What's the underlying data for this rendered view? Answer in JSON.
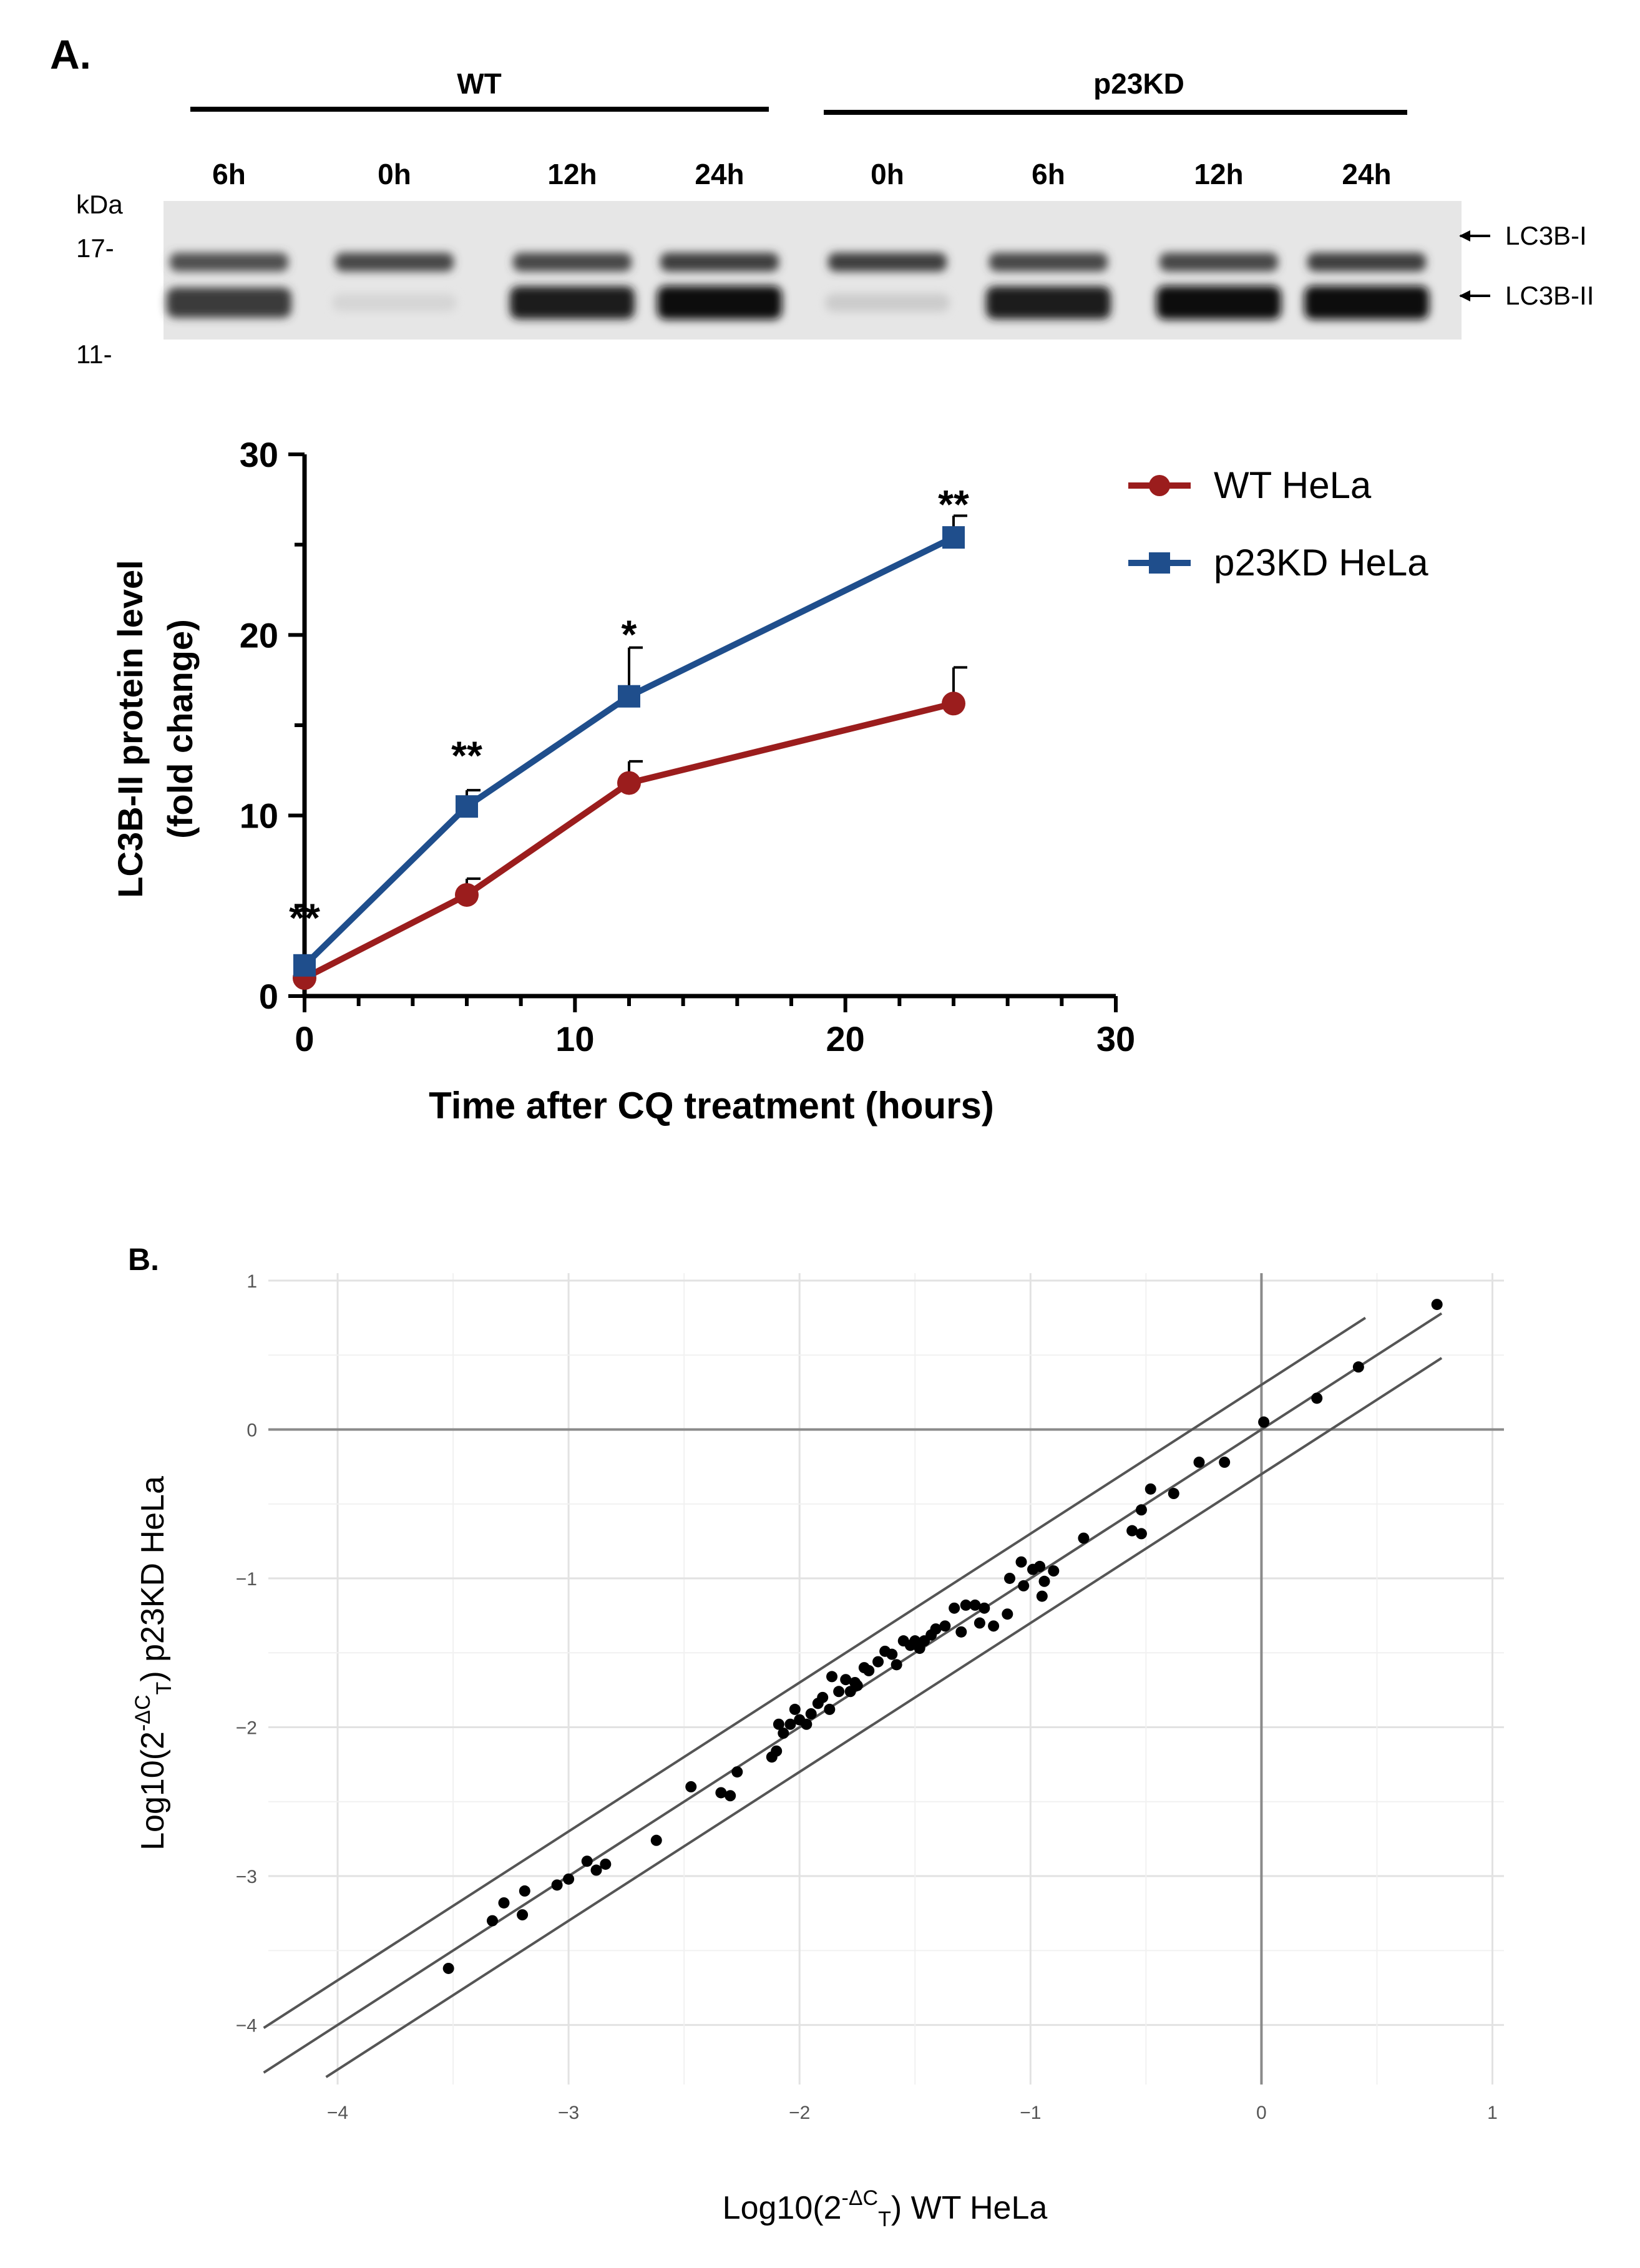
{
  "panel_a": {
    "label": "A.",
    "blot": {
      "group_wt": "WT",
      "group_kd": "p23KD",
      "lanes": [
        "6h",
        "0h",
        "12h",
        "24h",
        "0h",
        "6h",
        "12h",
        "24h"
      ],
      "kda_label": "kDa",
      "marker_17": "17-",
      "marker_11": "11-",
      "band_upper": "LC3B-I",
      "band_lower": "LC3B-II",
      "upper_band_intensity": [
        0.75,
        0.8,
        0.8,
        0.85,
        0.85,
        0.8,
        0.8,
        0.85
      ],
      "lower_band_intensity": [
        0.8,
        0.08,
        0.95,
        1.0,
        0.12,
        0.95,
        1.0,
        1.0
      ]
    }
  },
  "panel_b": {
    "label": "B."
  },
  "chart_data": [
    {
      "type": "line",
      "title": "",
      "xlabel": "Time after CQ treatment (hours)",
      "ylabel_line1": "LC3B-II protein level",
      "ylabel_line2": "(fold change)",
      "xlim": [
        0,
        30
      ],
      "ylim": [
        0,
        30
      ],
      "xticks": [
        0,
        10,
        20,
        30
      ],
      "yticks": [
        0,
        10,
        20,
        30
      ],
      "x": [
        0,
        6,
        12,
        24
      ],
      "series": [
        {
          "name": "WT HeLa",
          "color": "#9b1d1d",
          "marker": "circle",
          "values": [
            1.0,
            5.6,
            11.8,
            16.2
          ],
          "errors": [
            0,
            0.9,
            1.2,
            2.0
          ]
        },
        {
          "name": "p23KD HeLa",
          "color": "#1f4e8c",
          "marker": "square",
          "values": [
            1.7,
            10.5,
            16.6,
            25.4
          ],
          "errors": [
            0,
            0.9,
            2.7,
            1.2
          ]
        }
      ],
      "annotations": [
        {
          "x": 0,
          "y": 4.4,
          "text": "**"
        },
        {
          "x": 6,
          "y": 13.4,
          "text": "**"
        },
        {
          "x": 12,
          "y": 20.1,
          "text": "*"
        },
        {
          "x": 24,
          "y": 27.3,
          "text": "**"
        }
      ],
      "legend_position": "top-right"
    },
    {
      "type": "scatter",
      "xlabel_prefix": "Log10(2",
      "xlabel_sup": "-ΔC",
      "xlabel_sub": "T",
      "xlabel_suffix": ") WT HeLa",
      "ylabel_prefix": "Log10(2",
      "ylabel_sup": "-ΔC",
      "ylabel_sub": "T",
      "ylabel_suffix": ") p23KD HeLa",
      "xlim": [
        -4.3,
        1.05
      ],
      "ylim": [
        -4.4,
        1.05
      ],
      "xticks": [
        -4,
        -3,
        -2,
        -1,
        0,
        1
      ],
      "yticks": [
        -4,
        -3,
        -2,
        -1,
        0,
        1
      ],
      "xtick_labels": [
        "−4",
        "−3",
        "−2",
        "−1",
        "0",
        "1"
      ],
      "ytick_labels": [
        "−4",
        "−3",
        "−2",
        "−1",
        "0",
        "1"
      ],
      "reference_lines": [
        {
          "name": "identity",
          "slope": 1,
          "intercept": 0
        },
        {
          "name": "upper-bound",
          "slope": 1,
          "intercept": 0.3
        },
        {
          "name": "lower-bound",
          "slope": 1,
          "intercept": -0.3
        }
      ],
      "grid": true,
      "points": [
        [
          0.76,
          0.84
        ],
        [
          0.42,
          0.42
        ],
        [
          0.24,
          0.21
        ],
        [
          0.01,
          0.05
        ],
        [
          -0.16,
          -0.22
        ],
        [
          -0.27,
          -0.22
        ],
        [
          -0.38,
          -0.43
        ],
        [
          -0.48,
          -0.4
        ],
        [
          -0.52,
          -0.54
        ],
        [
          -0.52,
          -0.7
        ],
        [
          -0.56,
          -0.68
        ],
        [
          -0.77,
          -0.73
        ],
        [
          -0.9,
          -0.95
        ],
        [
          -0.94,
          -1.02
        ],
        [
          -0.95,
          -1.12
        ],
        [
          -0.96,
          -0.92
        ],
        [
          -0.99,
          -0.94
        ],
        [
          -1.03,
          -1.05
        ],
        [
          -1.04,
          -0.89
        ],
        [
          -1.09,
          -1.0
        ],
        [
          -1.1,
          -1.24
        ],
        [
          -1.16,
          -1.32
        ],
        [
          -1.2,
          -1.2
        ],
        [
          -1.22,
          -1.3
        ],
        [
          -1.24,
          -1.18
        ],
        [
          -1.28,
          -1.18
        ],
        [
          -1.3,
          -1.36
        ],
        [
          -1.33,
          -1.2
        ],
        [
          -1.37,
          -1.32
        ],
        [
          -1.41,
          -1.34
        ],
        [
          -1.43,
          -1.38
        ],
        [
          -1.46,
          -1.42
        ],
        [
          -1.48,
          -1.47
        ],
        [
          -1.5,
          -1.42
        ],
        [
          -1.52,
          -1.45
        ],
        [
          -1.55,
          -1.42
        ],
        [
          -1.58,
          -1.58
        ],
        [
          -1.6,
          -1.51
        ],
        [
          -1.63,
          -1.49
        ],
        [
          -1.66,
          -1.56
        ],
        [
          -1.7,
          -1.62
        ],
        [
          -1.72,
          -1.6
        ],
        [
          -1.75,
          -1.72
        ],
        [
          -1.76,
          -1.7
        ],
        [
          -1.78,
          -1.76
        ],
        [
          -1.8,
          -1.68
        ],
        [
          -1.83,
          -1.76
        ],
        [
          -1.86,
          -1.66
        ],
        [
          -1.87,
          -1.88
        ],
        [
          -1.9,
          -1.8
        ],
        [
          -1.92,
          -1.84
        ],
        [
          -1.95,
          -1.91
        ],
        [
          -1.97,
          -1.98
        ],
        [
          -2.0,
          -1.95
        ],
        [
          -2.02,
          -1.88
        ],
        [
          -2.04,
          -1.98
        ],
        [
          -2.07,
          -2.04
        ],
        [
          -2.09,
          -1.98
        ],
        [
          -2.1,
          -2.16
        ],
        [
          -2.12,
          -2.2
        ],
        [
          -2.27,
          -2.3
        ],
        [
          -2.3,
          -2.46
        ],
        [
          -2.34,
          -2.44
        ],
        [
          -2.47,
          -2.4
        ],
        [
          -2.62,
          -2.76
        ],
        [
          -2.84,
          -2.92
        ],
        [
          -2.88,
          -2.96
        ],
        [
          -2.92,
          -2.9
        ],
        [
          -3.0,
          -3.02
        ],
        [
          -3.05,
          -3.06
        ],
        [
          -3.19,
          -3.1
        ],
        [
          -3.2,
          -3.26
        ],
        [
          -3.28,
          -3.18
        ],
        [
          -3.33,
          -3.3
        ],
        [
          -3.52,
          -3.62
        ]
      ]
    }
  ]
}
